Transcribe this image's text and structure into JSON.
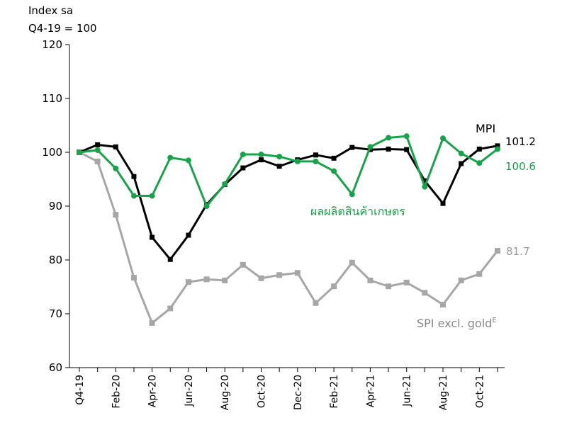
{
  "chart_data": {
    "type": "line",
    "unit_label_1": "Index sa",
    "unit_label_2": "Q4-19 = 100",
    "ylim": [
      60,
      120
    ],
    "y_ticks": [
      60,
      70,
      80,
      90,
      100,
      110,
      120
    ],
    "x_ticks": [
      "Q4-19",
      "Feb-20",
      "Apr-20",
      "Jun-20",
      "Aug-20",
      "Oct-20",
      "Dec-20",
      "Feb-21",
      "Apr-21",
      "Jun-21",
      "Aug-21",
      "Oct-21"
    ],
    "x": [
      "Q4-19",
      "Jan-20",
      "Feb-20",
      "Mar-20",
      "Apr-20",
      "May-20",
      "Jun-20",
      "Jul-20",
      "Aug-20",
      "Sep-20",
      "Oct-20",
      "Nov-20",
      "Dec-20",
      "Jan-21",
      "Feb-21",
      "Mar-21",
      "Apr-21",
      "May-21",
      "Jun-21",
      "Jul-21",
      "Aug-21",
      "Sep-21",
      "Oct-21",
      "Nov-21"
    ],
    "series": [
      {
        "label": "MPI",
        "end_label": "101.2",
        "color": "#000000",
        "marker": "square",
        "values": [
          100.0,
          101.4,
          101.0,
          95.5,
          84.2,
          80.1,
          84.6,
          90.3,
          94.0,
          97.1,
          98.6,
          97.4,
          98.6,
          99.5,
          98.9,
          100.9,
          100.5,
          100.6,
          100.5,
          94.7,
          90.5,
          97.9,
          100.6,
          101.2
        ]
      },
      {
        "label": "ผลผลิตสินค้าเกษตร",
        "end_label": "100.6",
        "color": "#16a34a",
        "marker": "circle",
        "values": [
          100.0,
          100.4,
          97.0,
          91.9,
          91.9,
          99.0,
          98.5,
          90.0,
          94.1,
          99.6,
          99.6,
          99.2,
          98.3,
          98.3,
          96.5,
          92.2,
          101.0,
          102.7,
          103.0,
          93.6,
          102.6,
          99.8,
          98.0,
          100.6
        ]
      },
      {
        "label": "SPI excl. gold",
        "label_superscript": "E",
        "end_label": "81.7",
        "color": "#a6a6a6",
        "marker": "square",
        "values": [
          100.0,
          98.3,
          88.4,
          76.7,
          68.3,
          71.0,
          75.9,
          76.4,
          76.2,
          79.1,
          76.6,
          77.2,
          77.6,
          72.0,
          75.1,
          79.5,
          76.2,
          75.1,
          75.8,
          73.9,
          71.7,
          76.2,
          77.4,
          81.7
        ]
      }
    ]
  }
}
